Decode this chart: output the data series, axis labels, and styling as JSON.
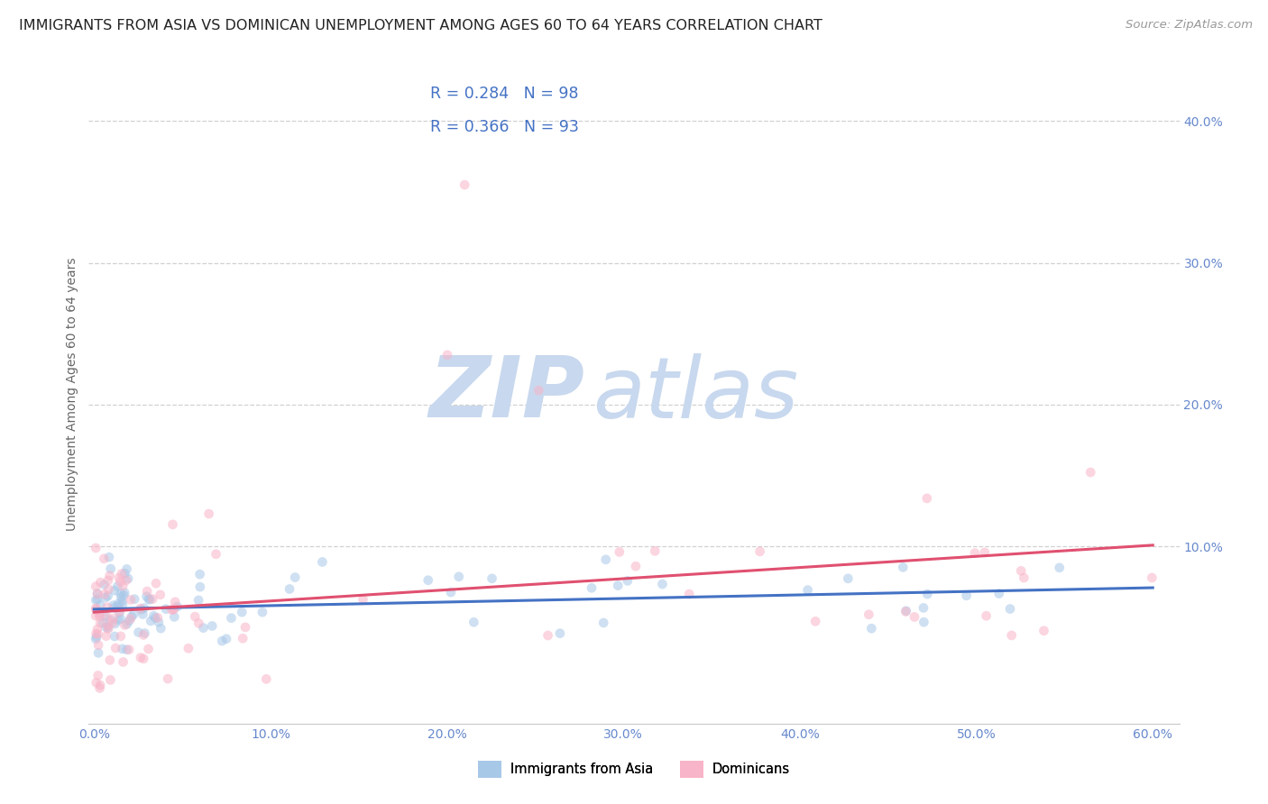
{
  "title": "IMMIGRANTS FROM ASIA VS DOMINICAN UNEMPLOYMENT AMONG AGES 60 TO 64 YEARS CORRELATION CHART",
  "source": "Source: ZipAtlas.com",
  "ylabel": "Unemployment Among Ages 60 to 64 years",
  "xlim": [
    -0.003,
    0.615
  ],
  "ylim": [
    -0.025,
    0.44
  ],
  "xtick_vals": [
    0.0,
    0.1,
    0.2,
    0.3,
    0.4,
    0.5,
    0.6
  ],
  "xtick_labels": [
    "0.0%",
    "10.0%",
    "20.0%",
    "30.0%",
    "40.0%",
    "50.0%",
    "60.0%"
  ],
  "right_yticks": [
    0.1,
    0.2,
    0.3,
    0.4
  ],
  "right_ytick_labels": [
    "10.0%",
    "20.0%",
    "30.0%",
    "40.0%"
  ],
  "series1_label": "Immigrants from Asia",
  "series2_label": "Dominicans",
  "series1_R": "0.284",
  "series1_N": "98",
  "series2_R": "0.366",
  "series2_N": "93",
  "series1_face_color": "#a8c8e8",
  "series2_face_color": "#f8b4c8",
  "series1_line_color": "#4472c4",
  "series2_line_color": "#e05070",
  "title_color": "#222222",
  "title_fontsize": 11.5,
  "axis_label_color": "#666666",
  "tick_color": "#6688cc",
  "watermark_zip": "ZIP",
  "watermark_atlas": "atlas",
  "watermark_color": "#c8d8ee",
  "legend_color": "#4472c4",
  "grid_color": "#cccccc",
  "source_color": "#999999",
  "source_fontsize": 9.5,
  "marker_size": 60,
  "marker_alpha": 0.55
}
